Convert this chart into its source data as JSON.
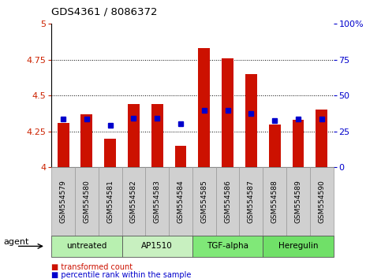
{
  "title": "GDS4361 / 8086372",
  "samples": [
    "GSM554579",
    "GSM554580",
    "GSM554581",
    "GSM554582",
    "GSM554583",
    "GSM554584",
    "GSM554585",
    "GSM554586",
    "GSM554587",
    "GSM554588",
    "GSM554589",
    "GSM554590"
  ],
  "red_values": [
    4.31,
    4.37,
    4.2,
    4.44,
    4.44,
    4.15,
    4.83,
    4.76,
    4.65,
    4.3,
    4.33,
    4.4
  ],
  "blue_values": [
    4.335,
    4.335,
    4.295,
    4.345,
    4.345,
    4.305,
    4.395,
    4.395,
    4.375,
    4.325,
    4.335,
    4.335
  ],
  "ymin": 4.0,
  "ymax": 5.0,
  "yticks": [
    4.0,
    4.25,
    4.5,
    4.75,
    5.0
  ],
  "ytick_labels": [
    "4",
    "4.25",
    "4.5",
    "4.75",
    "5"
  ],
  "right_yticks_pct": [
    0,
    25,
    50,
    75,
    100
  ],
  "right_ytick_labels": [
    "0",
    "25",
    "50",
    "75",
    "100%"
  ],
  "grid_lines": [
    4.25,
    4.5,
    4.75
  ],
  "groups": [
    {
      "label": "untreated",
      "start": 0,
      "end": 3,
      "color": "#b8f0b0"
    },
    {
      "label": "AP1510",
      "start": 3,
      "end": 6,
      "color": "#c8f0c0"
    },
    {
      "label": "TGF-alpha",
      "start": 6,
      "end": 9,
      "color": "#80e878"
    },
    {
      "label": "Heregulin",
      "start": 9,
      "end": 12,
      "color": "#70e068"
    }
  ],
  "bar_color": "#cc1100",
  "dot_color": "#0000cc",
  "bg_color": "#ffffff",
  "left_tick_color": "#cc2200",
  "right_tick_color": "#0000cc",
  "sample_box_color": "#d0d0d0",
  "legend_red": "transformed count",
  "legend_blue": "percentile rank within the sample",
  "agent_label": "agent",
  "bar_width": 0.5
}
